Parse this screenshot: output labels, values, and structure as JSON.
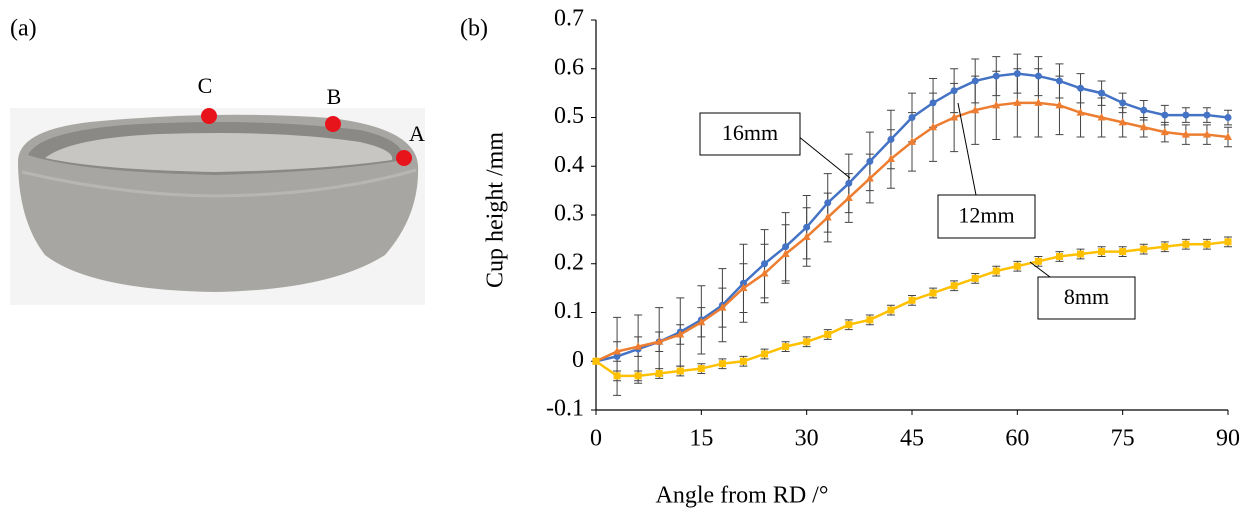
{
  "panel_labels": [
    "(a)",
    "(b)"
  ],
  "photo": {
    "points": [
      "C",
      "B",
      "A"
    ]
  },
  "chart_data": {
    "type": "line",
    "xlabel": "Angle from RD /°",
    "ylabel": "Cup height /mm",
    "x": [
      0,
      3,
      6,
      9,
      12,
      15,
      18,
      21,
      24,
      27,
      30,
      33,
      36,
      39,
      42,
      45,
      48,
      51,
      54,
      57,
      60,
      63,
      66,
      69,
      72,
      75,
      78,
      81,
      84,
      87,
      90
    ],
    "xlim": [
      0,
      90
    ],
    "xticks": [
      0,
      15,
      30,
      45,
      60,
      75,
      90
    ],
    "ylim": [
      -0.1,
      0.7
    ],
    "yticks": [
      -0.1,
      0,
      0.1,
      0.2,
      0.3,
      0.4,
      0.5,
      0.6,
      0.7
    ],
    "annotations": [
      "16mm",
      "12mm",
      "8mm"
    ],
    "series": [
      {
        "color": "#4472c4",
        "marker": "circle",
        "values": [
          0,
          0.01,
          0.025,
          0.04,
          0.06,
          0.085,
          0.115,
          0.16,
          0.2,
          0.235,
          0.275,
          0.325,
          0.365,
          0.41,
          0.455,
          0.5,
          0.53,
          0.555,
          0.575,
          0.585,
          0.59,
          0.585,
          0.575,
          0.56,
          0.55,
          0.53,
          0.515,
          0.505,
          0.505,
          0.505,
          0.5
        ],
        "errors": [
          0,
          0.08,
          0.07,
          0.07,
          0.07,
          0.07,
          0.075,
          0.08,
          0.07,
          0.07,
          0.065,
          0.06,
          0.06,
          0.06,
          0.06,
          0.05,
          0.05,
          0.045,
          0.045,
          0.04,
          0.04,
          0.04,
          0.035,
          0.03,
          0.025,
          0.02,
          0.02,
          0.02,
          0.015,
          0.015,
          0.015
        ]
      },
      {
        "color": "#ed7d31",
        "marker": "triangle",
        "values": [
          0,
          0.02,
          0.03,
          0.04,
          0.055,
          0.08,
          0.11,
          0.15,
          0.18,
          0.22,
          0.255,
          0.295,
          0.335,
          0.375,
          0.415,
          0.45,
          0.48,
          0.5,
          0.515,
          0.525,
          0.53,
          0.53,
          0.525,
          0.51,
          0.5,
          0.49,
          0.48,
          0.47,
          0.465,
          0.465,
          0.46
        ],
        "errors": [
          0,
          0.02,
          0.02,
          0.02,
          0.02,
          0.03,
          0.04,
          0.05,
          0.06,
          0.06,
          0.06,
          0.05,
          0.05,
          0.05,
          0.06,
          0.06,
          0.07,
          0.07,
          0.07,
          0.07,
          0.07,
          0.07,
          0.06,
          0.05,
          0.04,
          0.03,
          0.02,
          0.02,
          0.02,
          0.02,
          0.02
        ]
      },
      {
        "color": "#ffc000",
        "marker": "square",
        "values": [
          0,
          -0.03,
          -0.03,
          -0.025,
          -0.02,
          -0.015,
          -0.005,
          0,
          0.015,
          0.03,
          0.04,
          0.055,
          0.075,
          0.085,
          0.105,
          0.125,
          0.14,
          0.155,
          0.17,
          0.185,
          0.195,
          0.205,
          0.215,
          0.22,
          0.225,
          0.225,
          0.23,
          0.235,
          0.24,
          0.24,
          0.245
        ],
        "errors": [
          0,
          0.01,
          0.01,
          0.01,
          0.01,
          0.01,
          0.01,
          0.01,
          0.01,
          0.01,
          0.01,
          0.01,
          0.01,
          0.01,
          0.01,
          0.01,
          0.01,
          0.01,
          0.01,
          0.01,
          0.01,
          0.01,
          0.01,
          0.01,
          0.01,
          0.01,
          0.01,
          0.01,
          0.01,
          0.01,
          0.01
        ]
      }
    ]
  }
}
